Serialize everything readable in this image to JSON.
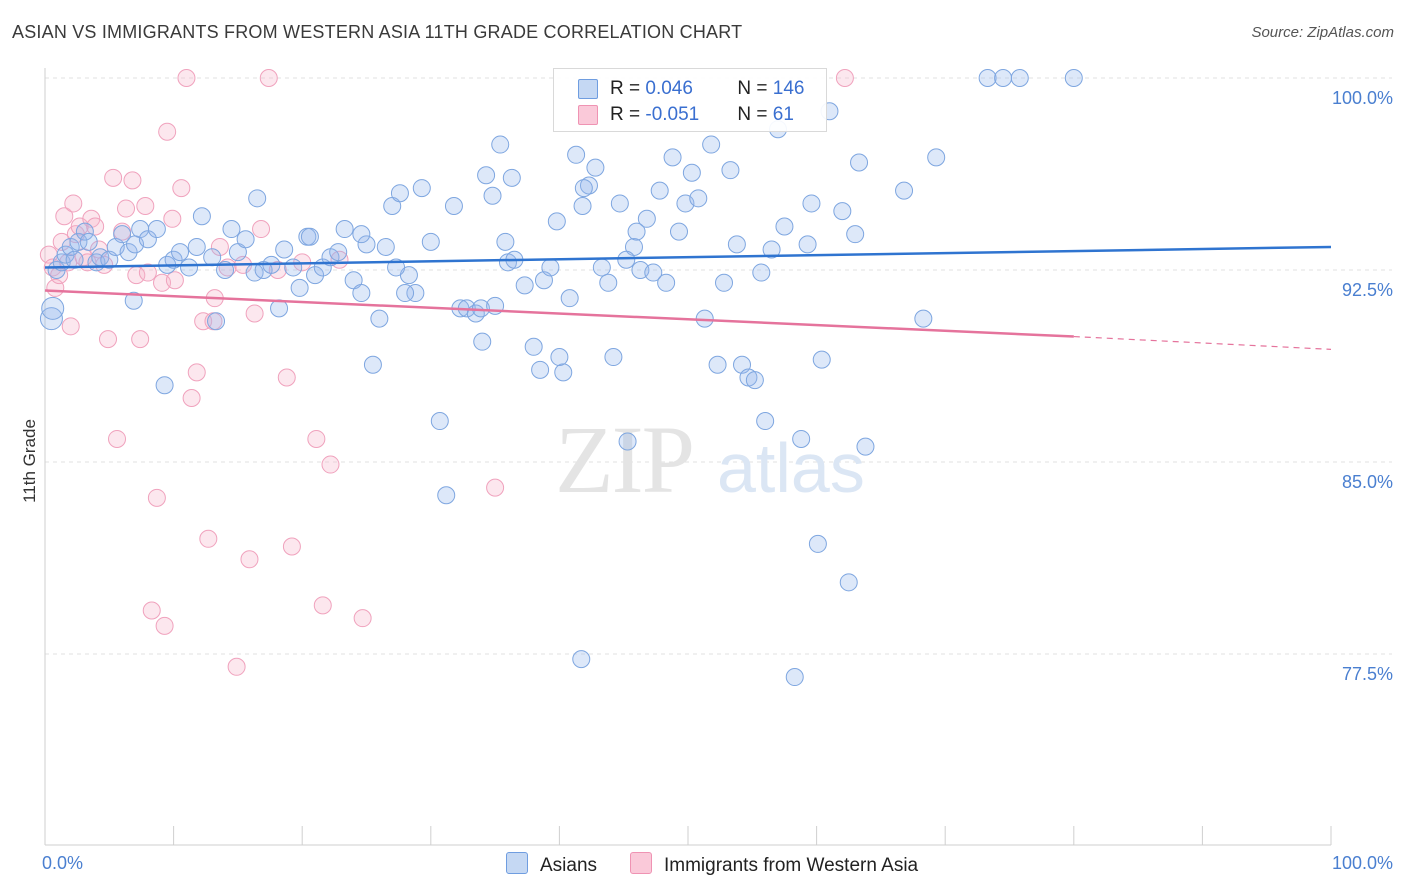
{
  "header": {
    "title": "ASIAN VS IMMIGRANTS FROM WESTERN ASIA 11TH GRADE CORRELATION CHART",
    "source": "Source: ZipAtlas.com"
  },
  "watermark": {
    "zip": "ZIP",
    "atlas": "atlas"
  },
  "legend": {
    "rows": [
      {
        "r_label": "R = ",
        "r_value": "0.046",
        "n_label": "N = ",
        "n_value": "146"
      },
      {
        "r_label": "R = ",
        "r_value": "-0.051",
        "n_label": "N = ",
        "n_value": "61"
      }
    ]
  },
  "bottom_legend": {
    "asians": "Asians",
    "immigrants": "Immigrants from Western Asia"
  },
  "chart_data": {
    "type": "scatter",
    "title": "ASIAN VS IMMIGRANTS FROM WESTERN ASIA 11TH GRADE CORRELATION CHART",
    "xlabel": "",
    "ylabel": "11th Grade",
    "xlim": [
      0,
      100
    ],
    "ylim": [
      70.5,
      101.5
    ],
    "x_tick_labels": [
      "0.0%",
      "100.0%"
    ],
    "y_ticks": [
      100,
      92.5,
      85,
      77.5
    ],
    "y_tick_labels": [
      "100.0%",
      "92.5%",
      "85.0%",
      "77.5%"
    ],
    "grid": "horizontal dashed",
    "colors": {
      "asians": "#6f9de0",
      "immigrants": "#ef93b3",
      "asians_line": "#2f74d0",
      "immigrants_line": "#e5739c"
    },
    "series": [
      {
        "name": "Asians",
        "color": "#6f9de0",
        "trend": {
          "x": [
            0,
            100
          ],
          "y": [
            92.6,
            93.4
          ]
        },
        "points": [
          [
            0.5,
            90.6
          ],
          [
            0.6,
            91.0
          ],
          [
            0.9,
            92.5
          ],
          [
            1.3,
            92.8
          ],
          [
            1.6,
            93.1
          ],
          [
            2.0,
            93.4
          ],
          [
            2.3,
            92.9
          ],
          [
            2.6,
            93.6
          ],
          [
            3.1,
            94.0
          ],
          [
            3.4,
            93.6
          ],
          [
            4.0,
            92.8
          ],
          [
            4.3,
            93.0
          ],
          [
            5.0,
            92.9
          ],
          [
            5.5,
            93.4
          ],
          [
            6.0,
            93.9
          ],
          [
            6.5,
            93.2
          ],
          [
            7.0,
            93.5
          ],
          [
            7.4,
            94.1
          ],
          [
            8.0,
            93.7
          ],
          [
            8.7,
            94.1
          ],
          [
            6.9,
            91.3
          ],
          [
            9.3,
            88.0
          ],
          [
            9.5,
            92.7
          ],
          [
            10.0,
            92.9
          ],
          [
            10.5,
            93.2
          ],
          [
            11.2,
            92.6
          ],
          [
            11.8,
            93.4
          ],
          [
            12.2,
            94.6
          ],
          [
            13.0,
            93.0
          ],
          [
            13.3,
            90.5
          ],
          [
            14.0,
            92.5
          ],
          [
            14.5,
            94.1
          ],
          [
            15.0,
            93.2
          ],
          [
            15.6,
            93.7
          ],
          [
            16.3,
            92.4
          ],
          [
            16.5,
            95.3
          ],
          [
            17.0,
            92.5
          ],
          [
            17.6,
            92.7
          ],
          [
            18.2,
            91.0
          ],
          [
            18.6,
            93.3
          ],
          [
            19.3,
            92.6
          ],
          [
            19.8,
            91.8
          ],
          [
            20.4,
            93.8
          ],
          [
            21.0,
            92.3
          ],
          [
            21.6,
            92.6
          ],
          [
            22.2,
            93.0
          ],
          [
            22.8,
            93.2
          ],
          [
            23.3,
            94.1
          ],
          [
            24.0,
            92.1
          ],
          [
            24.6,
            91.6
          ],
          [
            25.0,
            93.5
          ],
          [
            25.5,
            88.8
          ],
          [
            26.0,
            90.6
          ],
          [
            26.5,
            93.4
          ],
          [
            27.0,
            95.0
          ],
          [
            27.6,
            95.5
          ],
          [
            28.3,
            92.3
          ],
          [
            28.8,
            91.6
          ],
          [
            29.3,
            95.7
          ],
          [
            30.0,
            93.6
          ],
          [
            30.7,
            86.6
          ],
          [
            31.2,
            83.7
          ],
          [
            31.8,
            95.0
          ],
          [
            32.3,
            91.0
          ],
          [
            32.8,
            91.0
          ],
          [
            33.5,
            90.8
          ],
          [
            33.9,
            91.0
          ],
          [
            34.3,
            96.2
          ],
          [
            34.8,
            95.4
          ],
          [
            35.4,
            97.4
          ],
          [
            35.8,
            93.6
          ],
          [
            36.3,
            96.1
          ],
          [
            37.3,
            91.9
          ],
          [
            38.0,
            89.5
          ],
          [
            38.5,
            88.6
          ],
          [
            38.8,
            92.1
          ],
          [
            39.3,
            92.6
          ],
          [
            39.8,
            94.4
          ],
          [
            40.3,
            88.5
          ],
          [
            40.8,
            91.4
          ],
          [
            41.3,
            97.0
          ],
          [
            41.8,
            95.0
          ],
          [
            42.3,
            95.8
          ],
          [
            42.8,
            96.5
          ],
          [
            43.3,
            92.6
          ],
          [
            43.8,
            92.0
          ],
          [
            44.2,
            89.1
          ],
          [
            44.7,
            95.1
          ],
          [
            45.3,
            85.8
          ],
          [
            45.8,
            93.4
          ],
          [
            46.3,
            92.5
          ],
          [
            46.8,
            94.5
          ],
          [
            47.3,
            92.4
          ],
          [
            47.8,
            95.6
          ],
          [
            48.3,
            92.0
          ],
          [
            48.8,
            96.9
          ],
          [
            49.3,
            94.0
          ],
          [
            49.8,
            95.1
          ],
          [
            50.3,
            96.3
          ],
          [
            50.8,
            95.3
          ],
          [
            51.3,
            90.6
          ],
          [
            51.8,
            97.4
          ],
          [
            52.3,
            88.8
          ],
          [
            52.8,
            92.0
          ],
          [
            53.3,
            96.4
          ],
          [
            53.8,
            93.5
          ],
          [
            54.2,
            88.8
          ],
          [
            54.7,
            88.3
          ],
          [
            55.2,
            88.2
          ],
          [
            55.7,
            92.4
          ],
          [
            56.0,
            86.6
          ],
          [
            56.5,
            93.3
          ],
          [
            57.0,
            98.0
          ],
          [
            57.5,
            94.2
          ],
          [
            58.3,
            76.6
          ],
          [
            58.8,
            85.9
          ],
          [
            59.3,
            93.5
          ],
          [
            59.6,
            95.1
          ],
          [
            60.1,
            81.8
          ],
          [
            60.4,
            89.0
          ],
          [
            61.0,
            98.7
          ],
          [
            62.0,
            94.8
          ],
          [
            62.5,
            80.3
          ],
          [
            63.0,
            93.9
          ],
          [
            63.3,
            96.7
          ],
          [
            63.8,
            85.6
          ],
          [
            66.8,
            95.6
          ],
          [
            68.3,
            90.6
          ],
          [
            69.3,
            96.9
          ],
          [
            73.3,
            100.0
          ],
          [
            74.5,
            100.0
          ],
          [
            75.8,
            100.0
          ],
          [
            80.0,
            100.0
          ],
          [
            34.0,
            89.7
          ],
          [
            40.0,
            89.1
          ],
          [
            41.9,
            95.7
          ],
          [
            35.0,
            91.1
          ],
          [
            36.0,
            92.8
          ],
          [
            41.7,
            77.3
          ],
          [
            45.2,
            92.9
          ],
          [
            46.0,
            94.0
          ],
          [
            28.0,
            91.6
          ],
          [
            27.3,
            92.6
          ],
          [
            36.5,
            92.9
          ],
          [
            24.6,
            93.9
          ],
          [
            20.6,
            93.8
          ]
        ]
      },
      {
        "name": "Immigrants from Western Asia",
        "color": "#ef93b3",
        "trend": {
          "x": [
            0,
            80
          ],
          "y": [
            91.7,
            89.9
          ]
        },
        "trend_dashed": {
          "x": [
            80,
            100
          ],
          "y": [
            89.9,
            89.4
          ]
        },
        "points": [
          [
            0.3,
            93.1
          ],
          [
            0.6,
            92.6
          ],
          [
            0.8,
            91.8
          ],
          [
            1.1,
            92.3
          ],
          [
            1.3,
            93.6
          ],
          [
            1.5,
            94.6
          ],
          [
            1.8,
            92.8
          ],
          [
            2.0,
            90.3
          ],
          [
            2.2,
            95.1
          ],
          [
            2.4,
            93.9
          ],
          [
            2.7,
            94.2
          ],
          [
            3.0,
            93.0
          ],
          [
            3.3,
            92.8
          ],
          [
            3.6,
            94.5
          ],
          [
            3.9,
            94.2
          ],
          [
            4.2,
            93.3
          ],
          [
            4.6,
            92.7
          ],
          [
            4.9,
            89.8
          ],
          [
            5.3,
            96.1
          ],
          [
            5.6,
            85.9
          ],
          [
            6.0,
            94.0
          ],
          [
            6.3,
            94.9
          ],
          [
            6.8,
            96.0
          ],
          [
            7.1,
            92.3
          ],
          [
            7.4,
            89.8
          ],
          [
            7.8,
            95.0
          ],
          [
            8.0,
            92.4
          ],
          [
            8.3,
            79.2
          ],
          [
            8.7,
            83.6
          ],
          [
            9.1,
            92.0
          ],
          [
            9.5,
            97.9
          ],
          [
            9.9,
            94.5
          ],
          [
            10.1,
            92.1
          ],
          [
            10.6,
            95.7
          ],
          [
            11.0,
            100.0
          ],
          [
            11.4,
            87.5
          ],
          [
            11.8,
            88.5
          ],
          [
            12.3,
            90.5
          ],
          [
            12.7,
            82.0
          ],
          [
            13.2,
            91.4
          ],
          [
            13.6,
            93.4
          ],
          [
            14.2,
            92.6
          ],
          [
            14.9,
            77.0
          ],
          [
            15.4,
            92.7
          ],
          [
            15.9,
            81.2
          ],
          [
            16.3,
            90.8
          ],
          [
            16.8,
            94.1
          ],
          [
            17.4,
            100.0
          ],
          [
            18.1,
            92.5
          ],
          [
            18.8,
            88.3
          ],
          [
            19.2,
            81.7
          ],
          [
            20.0,
            92.8
          ],
          [
            21.1,
            85.9
          ],
          [
            21.6,
            79.4
          ],
          [
            22.2,
            84.9
          ],
          [
            22.9,
            92.9
          ],
          [
            24.7,
            78.9
          ],
          [
            13.1,
            90.5
          ],
          [
            9.3,
            78.6
          ],
          [
            35.0,
            84.0
          ],
          [
            62.2,
            100.0
          ]
        ]
      }
    ]
  }
}
